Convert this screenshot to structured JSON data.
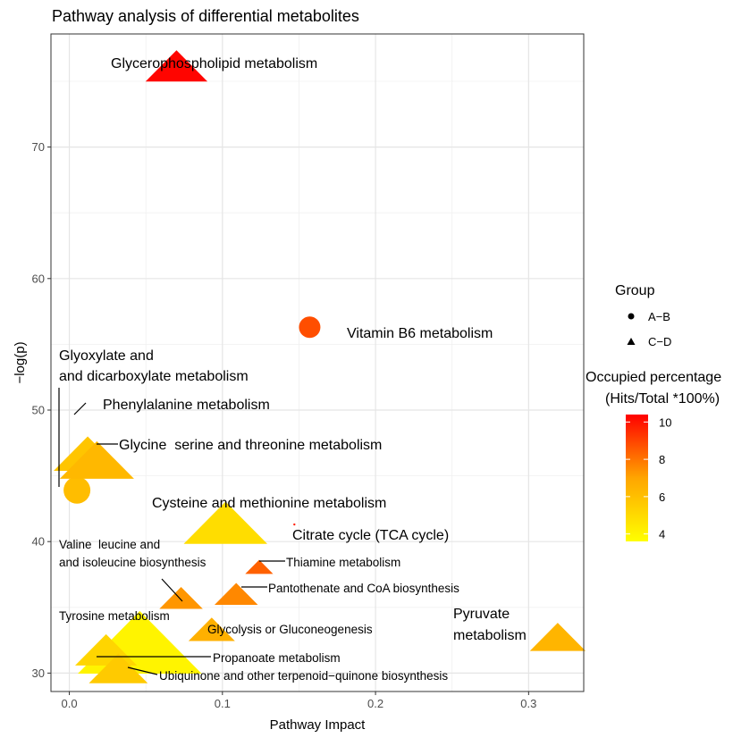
{
  "chart_data": {
    "type": "scatter",
    "title": "Pathway analysis of differential metabolites",
    "xlabel": "Pathway Impact",
    "ylabel": "−log(p)",
    "xlim": [
      -0.012,
      0.336
    ],
    "ylim": [
      28.6,
      78.6
    ],
    "x_ticks": [
      0.0,
      0.1,
      0.2,
      0.3
    ],
    "x_tick_labels": [
      "0.0",
      "0.1",
      "0.2",
      "0.3"
    ],
    "y_ticks": [
      30,
      40,
      50,
      60,
      70
    ],
    "y_tick_labels": [
      "30",
      "40",
      "50",
      "60",
      "70"
    ],
    "grid": true,
    "legend_group": {
      "title": "Group",
      "items": [
        {
          "label": "A−B",
          "shape": "circle"
        },
        {
          "label": "C−D",
          "shape": "triangle"
        }
      ]
    },
    "legend_color": {
      "title_line1": "Occupied percentage",
      "title_line2": "(Hits/Total *100%)",
      "min": 3.6,
      "max": 10.4,
      "ticks": [
        4,
        6,
        8,
        10
      ],
      "tick_labels": [
        "4",
        "6",
        "8",
        "10"
      ],
      "colors": [
        "#ffff00",
        "#ffa500",
        "#ff0000"
      ]
    },
    "points": [
      {
        "name": "Glycerophospholipid metabolism",
        "group": "C−D",
        "x": 0.07,
        "y": 76.0,
        "occupied": 10.3,
        "size": 1.0
      },
      {
        "name": "Vitamin B6 metabolism",
        "group": "A−B",
        "x": 0.157,
        "y": 56.3,
        "occupied": 8.8,
        "size": 0.6
      },
      {
        "name": "Glyoxylate and dicarboxylate metabolism",
        "group": "A−B",
        "x": 0.005,
        "y": 43.9,
        "occupied": 6.1,
        "size": 0.75
      },
      {
        "name": "Phenylalanine metabolism",
        "group": "C−D",
        "x": 0.012,
        "y": 46.5,
        "occupied": 5.8,
        "size": 1.1
      },
      {
        "name": "Glycine  serine and threonine metabolism",
        "group": "C−D",
        "x": 0.018,
        "y": 46.0,
        "occupied": 6.3,
        "size": 1.2
      },
      {
        "name": "Cysteine and methionine metabolism",
        "group": "C−D",
        "x": 0.102,
        "y": 41.2,
        "occupied": 4.9,
        "size": 1.35
      },
      {
        "name": "Citrate cycle (TCA cycle)",
        "group": "A−B",
        "x": 0.147,
        "y": 41.3,
        "occupied": 9.8,
        "size": 0.06
      },
      {
        "name": "Valine  leucine and isoleucine biosynthesis",
        "group": "C−D",
        "x": 0.073,
        "y": 35.6,
        "occupied": 7.3,
        "size": 0.7
      },
      {
        "name": "Thiamine metabolism",
        "group": "C−D",
        "x": 0.124,
        "y": 38.0,
        "occupied": 8.4,
        "size": 0.45
      },
      {
        "name": "Pantothenate and CoA biosynthesis",
        "group": "C−D",
        "x": 0.109,
        "y": 35.9,
        "occupied": 7.6,
        "size": 0.7
      },
      {
        "name": "Tyrosine metabolism",
        "group": "C−D",
        "x": 0.046,
        "y": 32.0,
        "occupied": 4.0,
        "size": 2.0
      },
      {
        "name": "Glycolysis or Gluconeogenesis",
        "group": "C−D",
        "x": 0.093,
        "y": 33.2,
        "occupied": 6.6,
        "size": 0.75
      },
      {
        "name": "Pyruvate metabolism",
        "group": "C−D",
        "x": 0.319,
        "y": 32.6,
        "occupied": 6.4,
        "size": 0.9
      },
      {
        "name": "Propanoate metabolism",
        "group": "C−D",
        "x": 0.024,
        "y": 31.6,
        "occupied": 5.2,
        "size": 1.0
      },
      {
        "name": "Ubiquinone and other terpenoid−quinone biosynthesis",
        "group": "C−D",
        "x": 0.032,
        "y": 30.2,
        "occupied": 5.6,
        "size": 0.95
      }
    ]
  }
}
